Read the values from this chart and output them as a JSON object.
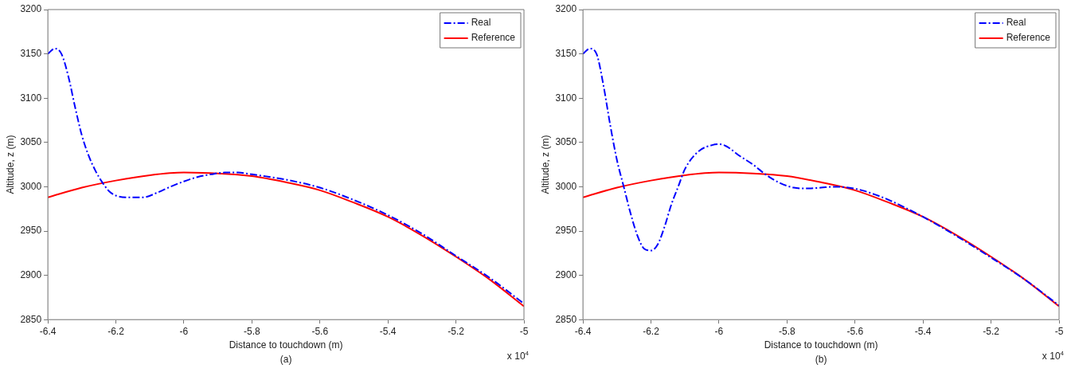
{
  "chart_data": [
    {
      "type": "line",
      "xlabel": "Distance to touchdown (m)",
      "ylabel": "Altitude, z (m)",
      "annotations": [
        "x 10$^{4}$",
        "(a)"
      ],
      "xlim": [
        -6.4,
        -5
      ],
      "xticks": [
        -6.4,
        -6.2,
        -6,
        -5.8,
        -5.6,
        -5.4,
        -5.2,
        -5
      ],
      "ylim": [
        2850,
        3200
      ],
      "yticks": [
        2850,
        2900,
        2950,
        3000,
        3050,
        3100,
        3150,
        3200
      ],
      "grid": false,
      "legend": "top right",
      "series": [
        {
          "name": "Real",
          "color": "#0000ff",
          "line_style": "dashed",
          "x": [
            -6.4,
            -6.38,
            -6.36,
            -6.34,
            -6.32,
            -6.3,
            -6.28,
            -6.26,
            -6.24,
            -6.22,
            -6.2,
            -6.16,
            -6.12,
            -6.08,
            -6.04,
            -6.0,
            -5.96,
            -5.92,
            -5.88,
            -5.84,
            -5.8,
            -5.7,
            -5.6,
            -5.5,
            -5.4,
            -5.3,
            -5.2,
            -5.1,
            -5.0
          ],
          "values": [
            3150,
            3156,
            3150,
            3125,
            3090,
            3058,
            3035,
            3018,
            3005,
            2995,
            2990,
            2988,
            2988,
            2993,
            3000,
            3006,
            3011,
            3014,
            3016,
            3016,
            3014,
            3008,
            2999,
            2985,
            2968,
            2947,
            2922,
            2897,
            2868
          ]
        },
        {
          "name": "Reference",
          "color": "#ff0000",
          "line_style": "solid",
          "x": [
            -6.4,
            -6.3,
            -6.2,
            -6.1,
            -6.0,
            -5.9,
            -5.8,
            -5.7,
            -5.6,
            -5.5,
            -5.4,
            -5.3,
            -5.2,
            -5.1,
            -5.0
          ],
          "values": [
            2988,
            2999,
            3007,
            3013,
            3016,
            3015,
            3012,
            3005,
            2996,
            2982,
            2966,
            2945,
            2921,
            2895,
            2865
          ]
        }
      ]
    },
    {
      "type": "line",
      "xlabel": "Distance to touchdown (m)",
      "ylabel": "Altitude, z (m)",
      "annotations": [
        "x 10$^{4}$",
        "(b)"
      ],
      "xlim": [
        -6.4,
        -5
      ],
      "xticks": [
        -6.4,
        -6.2,
        -6,
        -5.8,
        -5.6,
        -5.4,
        -5.2,
        -5
      ],
      "ylim": [
        2850,
        3200
      ],
      "yticks": [
        2850,
        2900,
        2950,
        3000,
        3050,
        3100,
        3150,
        3200
      ],
      "grid": false,
      "legend": "top right",
      "series": [
        {
          "name": "Real",
          "color": "#0000ff",
          "line_style": "dashed",
          "x": [
            -6.4,
            -6.38,
            -6.36,
            -6.34,
            -6.32,
            -6.3,
            -6.28,
            -6.26,
            -6.24,
            -6.22,
            -6.2,
            -6.18,
            -6.16,
            -6.14,
            -6.12,
            -6.1,
            -6.06,
            -6.02,
            -6.0,
            -5.98,
            -5.94,
            -5.9,
            -5.86,
            -5.82,
            -5.78,
            -5.74,
            -5.7,
            -5.66,
            -5.62,
            -5.58,
            -5.54,
            -5.5,
            -5.4,
            -5.3,
            -5.2,
            -5.1,
            -5.0
          ],
          "values": [
            3150,
            3156,
            3150,
            3115,
            3070,
            3030,
            3000,
            2970,
            2945,
            2930,
            2928,
            2935,
            2955,
            2980,
            3000,
            3020,
            3040,
            3047,
            3048,
            3046,
            3035,
            3025,
            3013,
            3004,
            2999,
            2998,
            2999,
            3000,
            2999,
            2996,
            2991,
            2985,
            2966,
            2944,
            2920,
            2895,
            2866
          ]
        },
        {
          "name": "Reference",
          "color": "#ff0000",
          "line_style": "solid",
          "x": [
            -6.4,
            -6.3,
            -6.2,
            -6.1,
            -6.0,
            -5.9,
            -5.8,
            -5.7,
            -5.6,
            -5.5,
            -5.4,
            -5.3,
            -5.2,
            -5.1,
            -5.0
          ],
          "values": [
            2988,
            2999,
            3007,
            3013,
            3016,
            3015,
            3012,
            3005,
            2996,
            2982,
            2966,
            2945,
            2921,
            2895,
            2865
          ]
        }
      ]
    }
  ]
}
